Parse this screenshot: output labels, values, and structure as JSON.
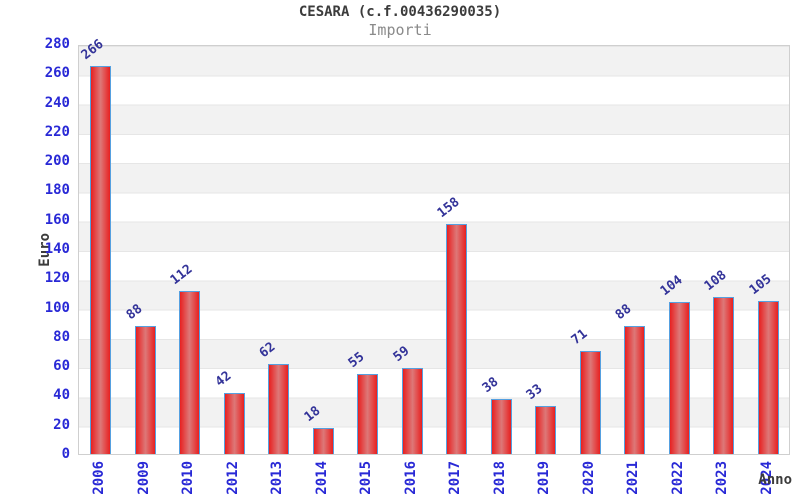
{
  "header": {
    "title": "CESARA (c.f.00436290035)",
    "subtitle": "Importi"
  },
  "chart_data": {
    "type": "bar",
    "title": "CESARA (c.f.00436290035)",
    "subtitle": "Importi",
    "xlabel": "Anno",
    "ylabel": "Euro",
    "categories": [
      "2006",
      "2009",
      "2010",
      "2012",
      "2013",
      "2014",
      "2015",
      "2016",
      "2017",
      "2018",
      "2019",
      "2020",
      "2021",
      "2022",
      "2023",
      "2024"
    ],
    "values": [
      266,
      88,
      112,
      42,
      62,
      18,
      55,
      59,
      158,
      38,
      33,
      71,
      88,
      104,
      108,
      105
    ],
    "ylim": [
      0,
      280
    ],
    "ytick_step": 20,
    "yticks": [
      0,
      20,
      40,
      60,
      80,
      100,
      120,
      140,
      160,
      180,
      200,
      220,
      240,
      260,
      280
    ],
    "grid": "horizontal-bands",
    "legend": "none",
    "value_labels": "rotated above bars",
    "colors": {
      "background": "#ffffff",
      "title": "#3c3c3c",
      "subtitle": "#8a8a8a",
      "axis_tick": "#2929d6",
      "value_label": "#333399",
      "axis_title": "#3c3c3c",
      "bar_edge": "#e82020",
      "bar_mid": "#dd7878",
      "bar_border": "#55a0e0",
      "band": "#f2f2f2",
      "gridline": "#e6e6e6",
      "plot_border": "#cfcfcf"
    }
  }
}
